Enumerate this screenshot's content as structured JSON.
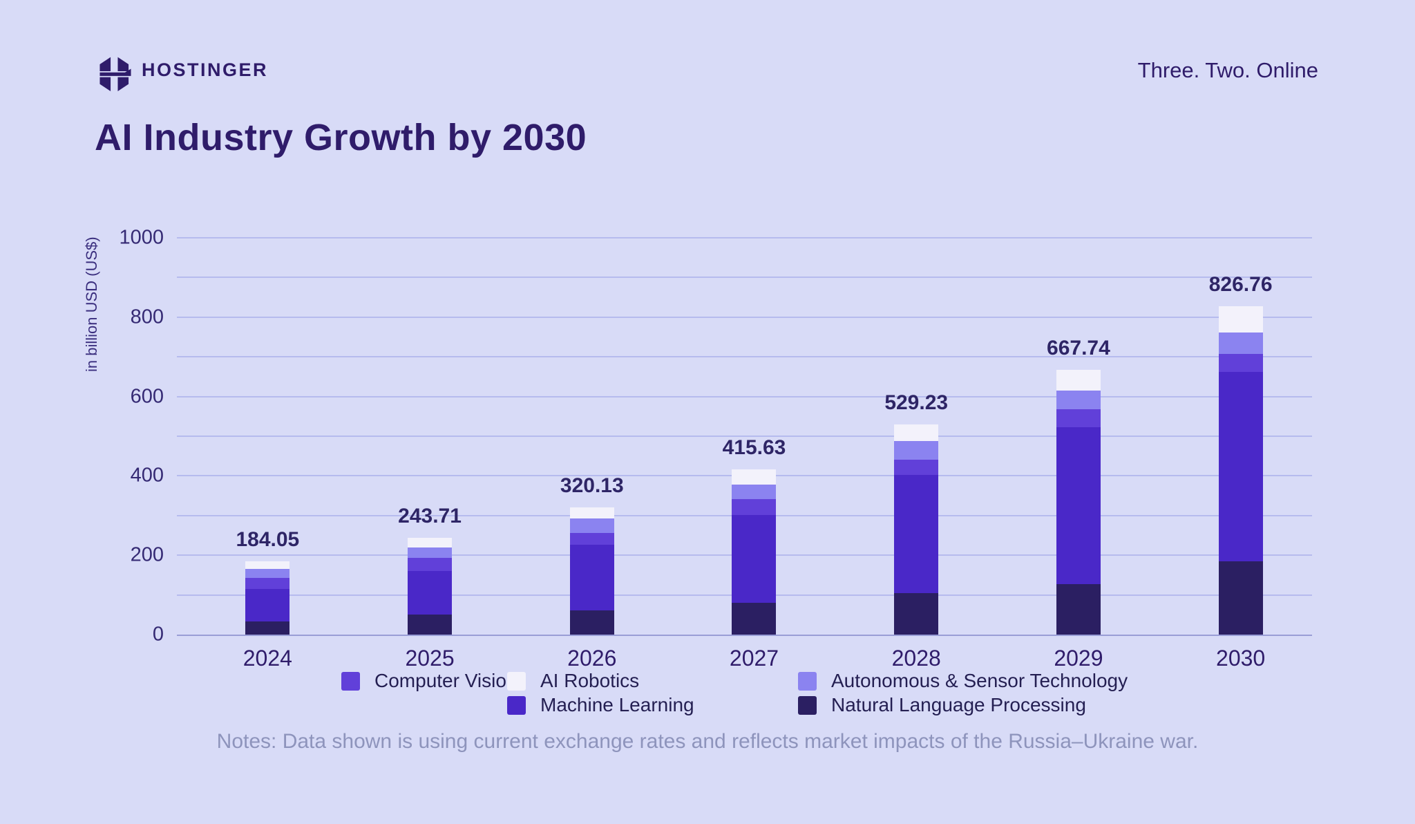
{
  "header": {
    "brand": "HOSTINGER",
    "tagline": "Three. Two. Online"
  },
  "title": "AI Industry Growth by 2030",
  "chart_data": {
    "type": "bar",
    "stacked": true,
    "title": "AI Industry Growth by 2030",
    "xlabel": "",
    "ylabel": "in billion USD (US$)",
    "ylim": [
      0,
      1000
    ],
    "gridline_interval": 100,
    "ytick_label_interval": 200,
    "grid": true,
    "legend_position": "bottom",
    "categories": [
      "2024",
      "2025",
      "2026",
      "2027",
      "2028",
      "2029",
      "2030"
    ],
    "totals": [
      184.05,
      243.71,
      320.13,
      415.63,
      529.23,
      667.74,
      826.76
    ],
    "series": [
      {
        "name": "Natural Language Processing",
        "color": "#2B1F62",
        "values": [
          33.0,
          50.5,
          61.0,
          80.0,
          104.5,
          127.0,
          184.5
        ]
      },
      {
        "name": "Machine Learning",
        "color": "#4A28C8",
        "values": [
          82.0,
          110.0,
          165.5,
          221.5,
          298.0,
          395.5,
          477.0
        ]
      },
      {
        "name": "Computer Vision",
        "color": "#6140D9",
        "values": [
          28.0,
          33.0,
          29.5,
          40.0,
          38.5,
          45.5,
          45.5
        ]
      },
      {
        "name": "Autonomous & Sensor Technology",
        "color": "#8B83F0",
        "values": [
          22.5,
          26.0,
          36.5,
          36.5,
          47.0,
          47.0,
          54.0
        ]
      },
      {
        "name": "AI Robotics",
        "color": "#F3F2FB",
        "values": [
          18.55,
          24.21,
          27.63,
          37.63,
          41.23,
          52.74,
          65.76
        ]
      }
    ]
  },
  "legend": {
    "columns": [
      [
        {
          "label": "Computer Vision",
          "color": "#6140D9"
        }
      ],
      [
        {
          "label": "AI Robotics",
          "color": "#F3F2FB"
        },
        {
          "label": "Machine Learning",
          "color": "#4A28C8"
        }
      ],
      [
        {
          "label": "Autonomous & Sensor Technology",
          "color": "#8B83F0"
        },
        {
          "label": "Natural Language Processing",
          "color": "#2B1F62"
        }
      ]
    ]
  },
  "notes": "Notes: Data shown is using current exchange rates and reflects market impacts of the Russia–Ukraine war.",
  "colors": {
    "background": "#D8DBF7",
    "gridline": "#B6BBEE",
    "axis_line": "#999DD6",
    "dark_text": "#2F1C6A",
    "notes_text": "#8E94BC"
  }
}
